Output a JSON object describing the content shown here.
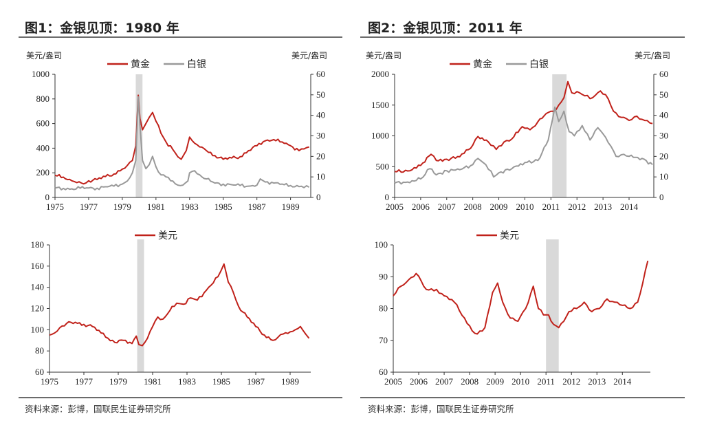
{
  "panels": [
    {
      "title": "图1：金银见顶：1980 年",
      "source": "资料来源：彭博，国联民生证券研究所"
    },
    {
      "title": "图2：金银见顶：2011 年",
      "source": "资料来源：彭博，国联民生证券研究所"
    }
  ],
  "colors": {
    "gold": "#c0211a",
    "silver": "#999999",
    "usd": "#c0211a",
    "shade": "#d9d9d9",
    "axis": "#333333"
  },
  "chart_data": [
    {
      "id": "p1-metals",
      "type": "line",
      "ylabel": "美元/盎司",
      "y2label": "美元/盎司",
      "xlim": [
        1975,
        1990.2
      ],
      "ylim": [
        0,
        1000
      ],
      "y2lim": [
        0,
        60
      ],
      "xticks": [
        "1975",
        "1977",
        "1979",
        "1981",
        "1983",
        "1985",
        "1987",
        "1989"
      ],
      "yticks": [
        "0",
        "200",
        "400",
        "600",
        "800",
        "1000"
      ],
      "y2ticks": [
        "0",
        "10",
        "20",
        "30",
        "40",
        "50",
        "60"
      ],
      "shade": [
        1979.8,
        1980.2
      ],
      "legend": "top-center",
      "series": [
        {
          "name": "黄金",
          "axis": "left",
          "color": "gold",
          "x": [
            1975,
            1975.5,
            1976,
            1976.3,
            1976.7,
            1977,
            1977.5,
            1978,
            1978.5,
            1979,
            1979.3,
            1979.6,
            1979.8,
            1979.95,
            1980.05,
            1980.2,
            1980.4,
            1980.6,
            1980.8,
            1981,
            1981.3,
            1981.6,
            1982,
            1982.3,
            1982.5,
            1982.8,
            1983,
            1983.3,
            1983.6,
            1984,
            1984.5,
            1985,
            1985.5,
            1986,
            1986.5,
            1987,
            1987.5,
            1988,
            1988.5,
            1989,
            1989.5,
            1990.1
          ],
          "values": [
            180,
            165,
            135,
            120,
            110,
            135,
            145,
            170,
            190,
            230,
            260,
            300,
            420,
            830,
            640,
            550,
            600,
            650,
            690,
            620,
            520,
            450,
            390,
            330,
            310,
            380,
            490,
            440,
            410,
            380,
            340,
            310,
            320,
            330,
            380,
            420,
            460,
            470,
            450,
            420,
            380,
            410
          ]
        },
        {
          "name": "白银",
          "axis": "right",
          "color": "silver",
          "x": [
            1975,
            1975.5,
            1976,
            1976.5,
            1977,
            1977.5,
            1978,
            1978.5,
            1979,
            1979.3,
            1979.6,
            1979.8,
            1979.95,
            1980.05,
            1980.2,
            1980.4,
            1980.6,
            1980.8,
            1981,
            1981.3,
            1981.6,
            1982,
            1982.3,
            1982.6,
            1982.9,
            1983,
            1983.3,
            1983.6,
            1984,
            1984.5,
            1985,
            1985.5,
            1986,
            1986.5,
            1987,
            1987.2,
            1987.5,
            1988,
            1988.5,
            1989,
            1989.5,
            1990.1
          ],
          "values": [
            4.5,
            4.4,
            4.2,
            4.5,
            4.6,
            4.5,
            5.2,
            5.5,
            6.5,
            8,
            12,
            18,
            49,
            35,
            18,
            14,
            16,
            20,
            15,
            11,
            10,
            8,
            6,
            6,
            8,
            12,
            13,
            11,
            9,
            7,
            6.5,
            6.2,
            5.8,
            5.5,
            6,
            9,
            7.5,
            7,
            6.5,
            5.8,
            5.3,
            5
          ]
        }
      ]
    },
    {
      "id": "p1-usd",
      "type": "line",
      "xlim": [
        1975,
        1990.2
      ],
      "ylim": [
        60,
        180
      ],
      "xticks": [
        "1975",
        "1977",
        "1979",
        "1981",
        "1983",
        "1985",
        "1987",
        "1989"
      ],
      "yticks": [
        "60",
        "80",
        "100",
        "120",
        "140",
        "160",
        "180"
      ],
      "shade": [
        1980.1,
        1980.5
      ],
      "legend": "top-center",
      "series": [
        {
          "name": "美元",
          "axis": "left",
          "color": "usd",
          "x": [
            1975,
            1975.3,
            1975.6,
            1976,
            1976.5,
            1977,
            1977.5,
            1978,
            1978.4,
            1978.8,
            1979.3,
            1979.8,
            1980.05,
            1980.2,
            1980.4,
            1980.7,
            1981,
            1981.3,
            1981.6,
            1982,
            1982.4,
            1982.8,
            1983.2,
            1983.6,
            1984,
            1984.4,
            1984.8,
            1985.15,
            1985.4,
            1985.7,
            1986,
            1986.5,
            1987,
            1987.5,
            1988,
            1988.3,
            1988.6,
            1989,
            1989.3,
            1989.6,
            1989.9,
            1990.1
          ],
          "values": [
            95,
            97,
            102,
            106,
            107,
            105,
            103,
            97,
            92,
            88,
            90,
            87,
            94,
            86,
            85,
            92,
            103,
            112,
            110,
            118,
            125,
            124,
            130,
            128,
            135,
            142,
            150,
            162,
            145,
            135,
            122,
            112,
            103,
            95,
            90,
            93,
            96,
            98,
            100,
            103,
            96,
            92
          ]
        }
      ]
    },
    {
      "id": "p2-metals",
      "type": "line",
      "ylabel": "美元/盎司",
      "y2label": "美元/盎司",
      "xlim": [
        2005,
        2014.95
      ],
      "ylim": [
        0,
        2000
      ],
      "y2lim": [
        0,
        60
      ],
      "xticks": [
        "2005",
        "2006",
        "2007",
        "2008",
        "2009",
        "2010",
        "2011",
        "2012",
        "2013",
        "2014"
      ],
      "yticks": [
        "0",
        "500",
        "1000",
        "1500",
        "2000"
      ],
      "y2ticks": [
        "0",
        "10",
        "20",
        "30",
        "40",
        "50",
        "60"
      ],
      "shade": [
        2011.05,
        2011.6
      ],
      "legend": "top-center",
      "series": [
        {
          "name": "黄金",
          "axis": "left",
          "color": "gold",
          "x": [
            2005,
            2005.5,
            2006,
            2006.4,
            2006.6,
            2007,
            2007.5,
            2008,
            2008.2,
            2008.6,
            2008.9,
            2009.2,
            2009.5,
            2009.9,
            2010.2,
            2010.5,
            2010.9,
            2011.1,
            2011.3,
            2011.5,
            2011.65,
            2011.8,
            2012,
            2012.3,
            2012.6,
            2012.9,
            2013.2,
            2013.4,
            2013.7,
            2014,
            2014.3,
            2014.6,
            2014.9
          ],
          "values": [
            420,
            430,
            520,
            700,
            600,
            620,
            660,
            850,
            990,
            900,
            780,
            900,
            950,
            1150,
            1100,
            1230,
            1380,
            1400,
            1500,
            1620,
            1880,
            1700,
            1720,
            1650,
            1620,
            1730,
            1600,
            1400,
            1300,
            1250,
            1320,
            1250,
            1200
          ]
        },
        {
          "name": "白银",
          "axis": "right",
          "color": "silver",
          "x": [
            2005,
            2005.5,
            2006,
            2006.35,
            2006.6,
            2007,
            2007.5,
            2008,
            2008.2,
            2008.5,
            2008.8,
            2009,
            2009.5,
            2010,
            2010.5,
            2010.9,
            2011.15,
            2011.3,
            2011.5,
            2011.7,
            2011.9,
            2012.2,
            2012.5,
            2012.8,
            2013,
            2013.3,
            2013.5,
            2013.8,
            2014,
            2014.5,
            2014.9
          ],
          "values": [
            7,
            7.5,
            9,
            14,
            11,
            13,
            13.5,
            16,
            19,
            16,
            10,
            12,
            14,
            17,
            18,
            28,
            44,
            37,
            42,
            32,
            30,
            35,
            28,
            34,
            31,
            25,
            20,
            21,
            20,
            19,
            16
          ]
        }
      ]
    },
    {
      "id": "p2-usd",
      "type": "line",
      "xlim": [
        2005,
        2015.1
      ],
      "ylim": [
        60,
        100
      ],
      "xticks": [
        "2005",
        "2006",
        "2007",
        "2008",
        "2009",
        "2010",
        "2011",
        "2012",
        "2013",
        "2014"
      ],
      "yticks": [
        "60",
        "70",
        "80",
        "90",
        "100"
      ],
      "shade": [
        2011.0,
        2011.5
      ],
      "legend": "top-center",
      "series": [
        {
          "name": "美元",
          "axis": "left",
          "color": "usd",
          "x": [
            2005,
            2005.3,
            2005.6,
            2005.9,
            2006.3,
            2006.7,
            2007,
            2007.4,
            2007.8,
            2008.1,
            2008.3,
            2008.6,
            2008.9,
            2009.1,
            2009.3,
            2009.6,
            2009.9,
            2010.2,
            2010.5,
            2010.7,
            2010.9,
            2011.1,
            2011.3,
            2011.5,
            2011.7,
            2011.9,
            2012.2,
            2012.5,
            2012.8,
            2013.1,
            2013.4,
            2013.7,
            2014,
            2014.3,
            2014.6,
            2014.8,
            2015
          ],
          "values": [
            84,
            87,
            89,
            91,
            86,
            86,
            84,
            82,
            77,
            73,
            72,
            74,
            85,
            88,
            82,
            77,
            76,
            80,
            87,
            80,
            78,
            78,
            75,
            74,
            76,
            79,
            80,
            82,
            79,
            80,
            83,
            82,
            81,
            80,
            82,
            88,
            95
          ]
        }
      ]
    }
  ]
}
